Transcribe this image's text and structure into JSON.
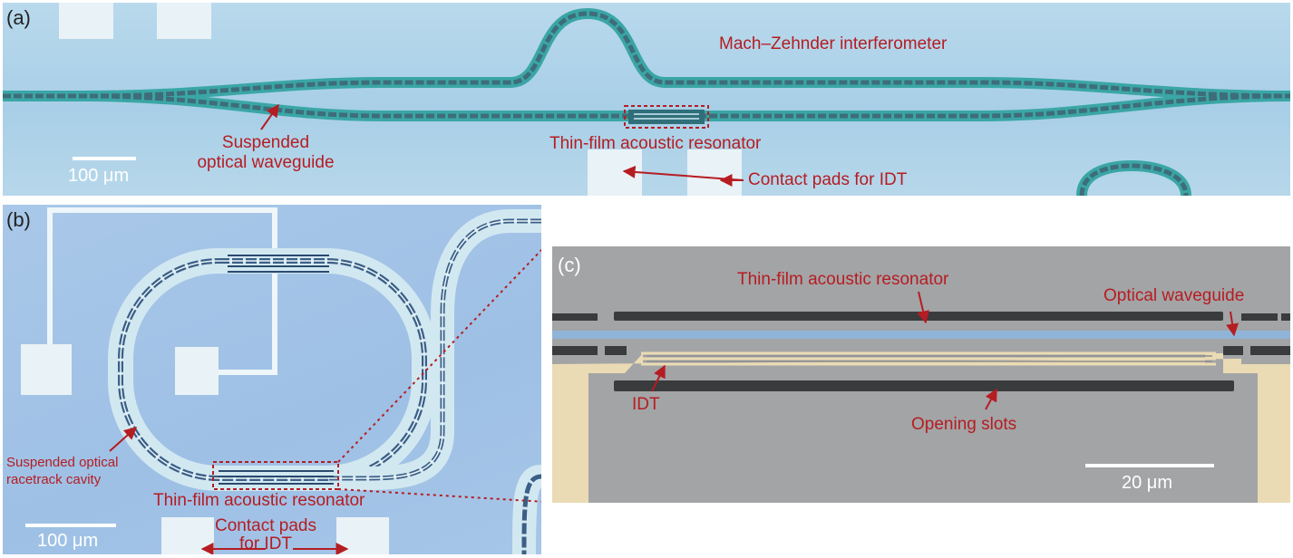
{
  "figure": {
    "panel_a": {
      "label": "(a)",
      "annotations": {
        "mzi": "Mach–Zehnder interferometer",
        "waveguide_line1": "Suspended",
        "waveguide_line2": "optical waveguide",
        "resonator": "Thin-film acoustic resonator",
        "pads": "Contact pads for IDT"
      },
      "scale_bar": "100 μm"
    },
    "panel_b": {
      "label": "(b)",
      "annotations": {
        "racetrack_line1": "Suspended optical",
        "racetrack_line2": "racetrack cavity",
        "resonator": "Thin-film acoustic resonator",
        "pads_line1": "Contact pads",
        "pads_line2": "for IDT"
      },
      "scale_bar": "100 μm"
    },
    "panel_c": {
      "label": "(c)",
      "annotations": {
        "resonator": "Thin-film acoustic resonator",
        "waveguide": "Optical waveguide",
        "idt": "IDT",
        "slots": "Opening slots"
      },
      "scale_bar": "20 μm"
    }
  },
  "colors": {
    "annotation": "#b51d22",
    "waveguide_cladding": "#3aa6a6",
    "sem_gray": "#a3a4a6",
    "sem_electrode": "#eadbb4",
    "sem_waveguide": "#8fb4d8",
    "pad": "#e9f2f6"
  }
}
